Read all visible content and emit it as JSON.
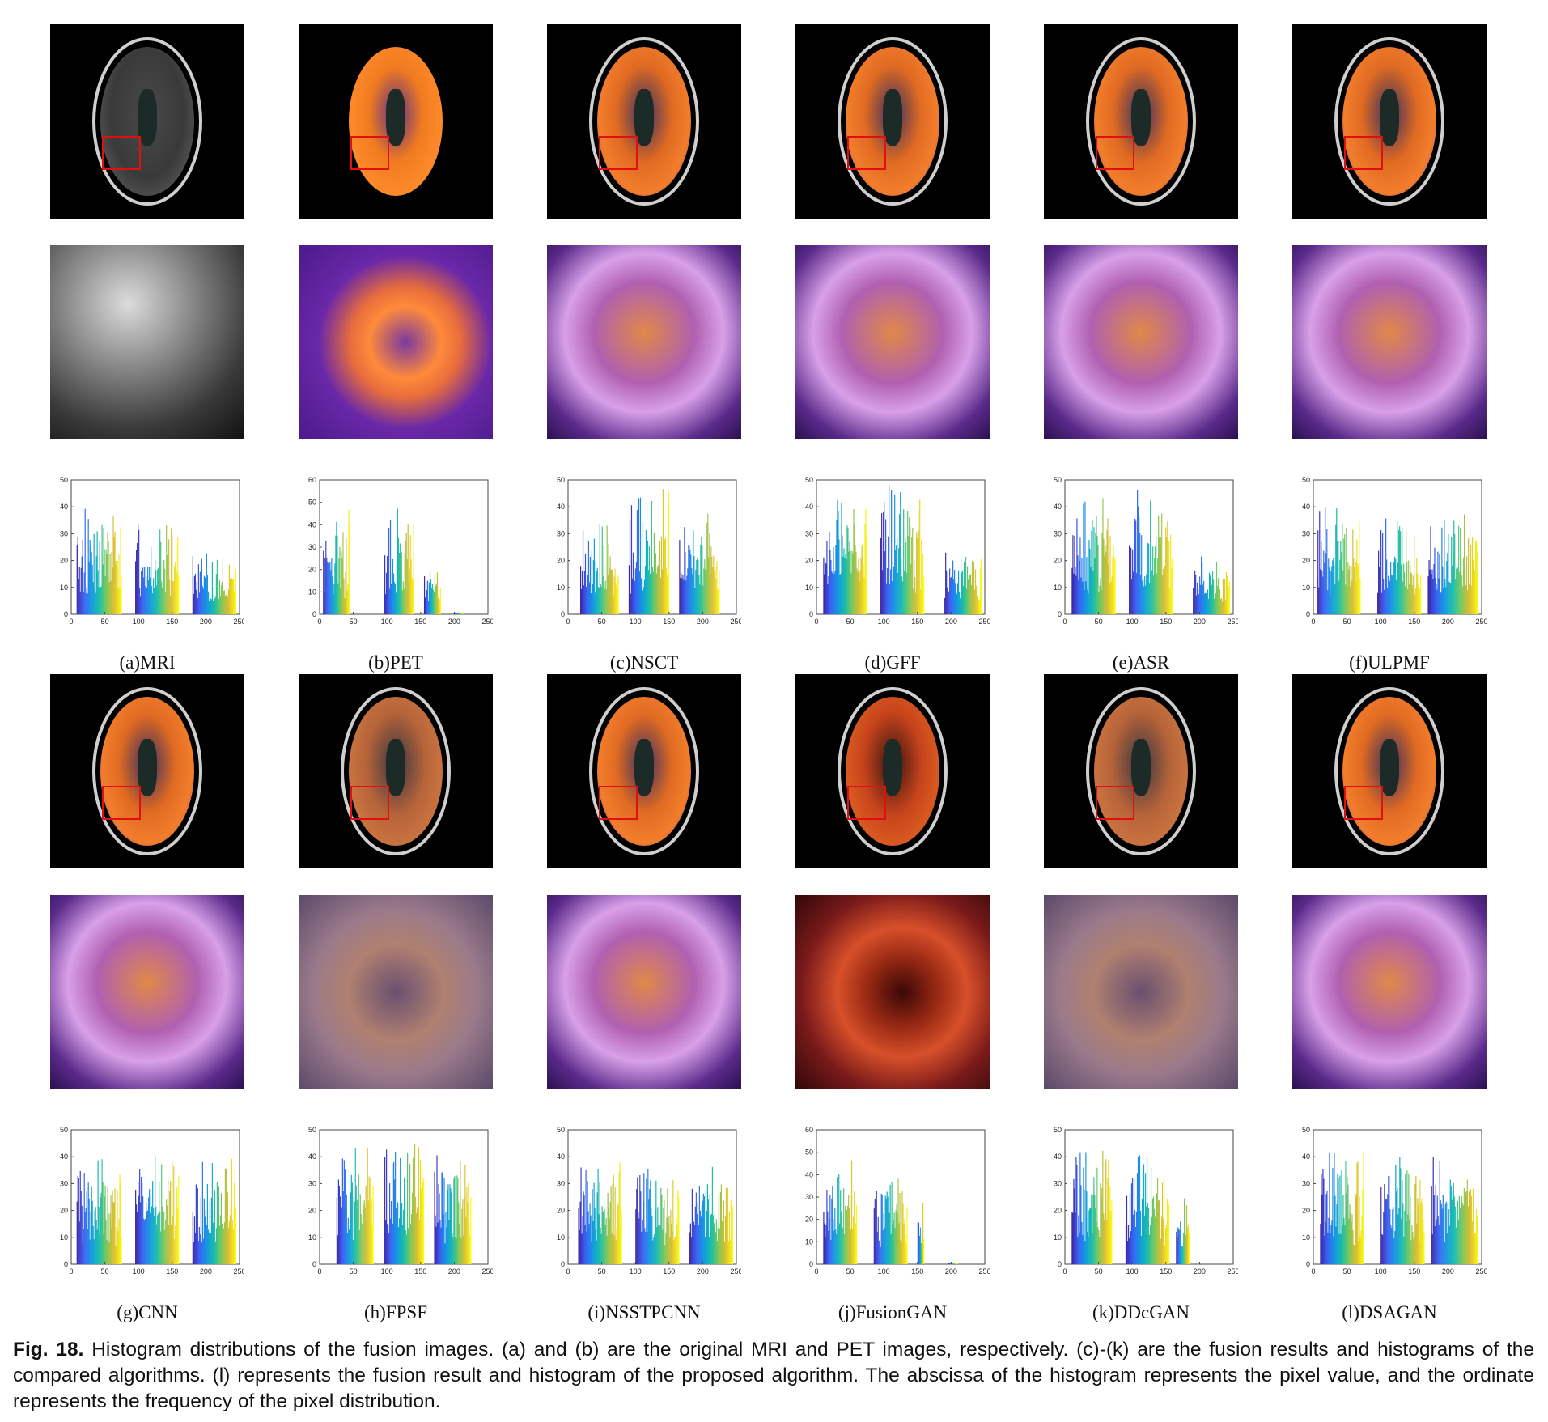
{
  "figure": {
    "caption_label": "Fig. 18.",
    "caption_text": "Histogram distributions of the fusion images. (a) and (b) are the original MRI and PET images, respectively. (c)-(k) are the fusion results and histograms of the compared algorithms. (l) represents the fusion result and histogram of the proposed algorithm. The abscissa of the histogram represents the pixel value, and the ordinate represents the frequency of the pixel distribution."
  },
  "panels": [
    {
      "label": "(a)MRI",
      "style": "mri"
    },
    {
      "label": "(b)PET",
      "style": "pet"
    },
    {
      "label": "(c)NSCT",
      "style": "fused"
    },
    {
      "label": "(d)GFF",
      "style": "fused"
    },
    {
      "label": "(e)ASR",
      "style": "fused"
    },
    {
      "label": "(f)ULPMF",
      "style": "fused"
    },
    {
      "label": "(g)CNN",
      "style": "fused"
    },
    {
      "label": "(h)FPSF",
      "style": "faded"
    },
    {
      "label": "(i)NSSTPCNN",
      "style": "fused"
    },
    {
      "label": "(j)FusionGAN",
      "style": "red"
    },
    {
      "label": "(k)DDcGAN",
      "style": "faded"
    },
    {
      "label": "(l)DSAGAN",
      "style": "fused"
    }
  ],
  "chart_data": [
    {
      "type": "bar",
      "panel": "(a)MRI",
      "xlim": [
        0,
        250
      ],
      "ylim": [
        0,
        50
      ],
      "xticks": [
        "0",
        "50",
        "100",
        "150",
        "200",
        "250"
      ],
      "yticks": [
        "0",
        "10",
        "20",
        "30",
        "40",
        "50"
      ],
      "groups": [
        {
          "x0": 8,
          "x1": 75,
          "peak": 40
        },
        {
          "x0": 95,
          "x1": 160,
          "peak": 38
        },
        {
          "x0": 180,
          "x1": 245,
          "peak": 23
        }
      ]
    },
    {
      "type": "bar",
      "panel": "(b)PET",
      "xlim": [
        0,
        250
      ],
      "ylim": [
        0,
        60
      ],
      "xticks": [
        "0",
        "50",
        "100",
        "150",
        "200",
        "250"
      ],
      "yticks": [
        "0",
        "10",
        "20",
        "30",
        "40",
        "50",
        "60"
      ],
      "groups": [
        {
          "x0": 5,
          "x1": 45,
          "peak": 48
        },
        {
          "x0": 95,
          "x1": 140,
          "peak": 51
        },
        {
          "x0": 155,
          "x1": 180,
          "peak": 25
        },
        {
          "x0": 200,
          "x1": 215,
          "peak": 1
        }
      ]
    },
    {
      "type": "bar",
      "panel": "(c)NSCT",
      "xlim": [
        0,
        250
      ],
      "ylim": [
        0,
        50
      ],
      "xticks": [
        "0",
        "50",
        "100",
        "150",
        "200",
        "250"
      ],
      "yticks": [
        "0",
        "10",
        "20",
        "30",
        "40",
        "50"
      ],
      "groups": [
        {
          "x0": 18,
          "x1": 75,
          "peak": 34
        },
        {
          "x0": 90,
          "x1": 150,
          "peak": 48
        },
        {
          "x0": 165,
          "x1": 225,
          "peak": 40
        }
      ]
    },
    {
      "type": "bar",
      "panel": "(d)GFF",
      "xlim": [
        0,
        250
      ],
      "ylim": [
        0,
        50
      ],
      "xticks": [
        "0",
        "50",
        "100",
        "150",
        "200",
        "250"
      ],
      "yticks": [
        "0",
        "10",
        "20",
        "30",
        "40",
        "50"
      ],
      "groups": [
        {
          "x0": 10,
          "x1": 75,
          "peak": 46
        },
        {
          "x0": 95,
          "x1": 160,
          "peak": 49
        },
        {
          "x0": 190,
          "x1": 245,
          "peak": 24
        }
      ]
    },
    {
      "type": "bar",
      "panel": "(e)ASR",
      "xlim": [
        0,
        250
      ],
      "ylim": [
        0,
        50
      ],
      "xticks": [
        "0",
        "50",
        "100",
        "150",
        "200",
        "250"
      ],
      "yticks": [
        "0",
        "10",
        "20",
        "30",
        "40",
        "50"
      ],
      "groups": [
        {
          "x0": 10,
          "x1": 75,
          "peak": 45
        },
        {
          "x0": 95,
          "x1": 160,
          "peak": 48
        },
        {
          "x0": 190,
          "x1": 245,
          "peak": 23
        }
      ]
    },
    {
      "type": "bar",
      "panel": "(f)ULPMF",
      "xlim": [
        0,
        250
      ],
      "ylim": [
        0,
        50
      ],
      "xticks": [
        "0",
        "50",
        "100",
        "150",
        "200",
        "250"
      ],
      "yticks": [
        "0",
        "10",
        "20",
        "30",
        "40",
        "50"
      ],
      "groups": [
        {
          "x0": 5,
          "x1": 70,
          "peak": 43
        },
        {
          "x0": 95,
          "x1": 160,
          "peak": 38
        },
        {
          "x0": 170,
          "x1": 245,
          "peak": 39
        }
      ]
    },
    {
      "type": "bar",
      "panel": "(g)CNN",
      "xlim": [
        0,
        250
      ],
      "ylim": [
        0,
        50
      ],
      "xticks": [
        "0",
        "50",
        "100",
        "150",
        "200",
        "250"
      ],
      "yticks": [
        "0",
        "10",
        "20",
        "30",
        "40",
        "50"
      ],
      "groups": [
        {
          "x0": 8,
          "x1": 75,
          "peak": 42
        },
        {
          "x0": 95,
          "x1": 160,
          "peak": 41
        },
        {
          "x0": 180,
          "x1": 245,
          "peak": 43
        }
      ]
    },
    {
      "type": "bar",
      "panel": "(h)FPSF",
      "xlim": [
        0,
        250
      ],
      "ylim": [
        0,
        50
      ],
      "xticks": [
        "0",
        "50",
        "100",
        "150",
        "200",
        "250"
      ],
      "yticks": [
        "0",
        "10",
        "20",
        "30",
        "40",
        "50"
      ],
      "groups": [
        {
          "x0": 25,
          "x1": 80,
          "peak": 47
        },
        {
          "x0": 95,
          "x1": 155,
          "peak": 48
        },
        {
          "x0": 170,
          "x1": 225,
          "peak": 42
        }
      ]
    },
    {
      "type": "bar",
      "panel": "(i)NSSTPCNN",
      "xlim": [
        0,
        250
      ],
      "ylim": [
        0,
        50
      ],
      "xticks": [
        "0",
        "50",
        "100",
        "150",
        "200",
        "250"
      ],
      "yticks": [
        "0",
        "10",
        "20",
        "30",
        "40",
        "50"
      ],
      "groups": [
        {
          "x0": 15,
          "x1": 80,
          "peak": 42
        },
        {
          "x0": 100,
          "x1": 165,
          "peak": 39
        },
        {
          "x0": 180,
          "x1": 245,
          "peak": 39
        }
      ]
    },
    {
      "type": "bar",
      "panel": "(j)FusionGAN",
      "xlim": [
        0,
        250
      ],
      "ylim": [
        0,
        60
      ],
      "xticks": [
        "0",
        "50",
        "100",
        "150",
        "200",
        "250"
      ],
      "yticks": [
        "0",
        "10",
        "20",
        "30",
        "40",
        "50",
        "60"
      ],
      "groups": [
        {
          "x0": 10,
          "x1": 60,
          "peak": 51
        },
        {
          "x0": 85,
          "x1": 135,
          "peak": 44
        },
        {
          "x0": 150,
          "x1": 160,
          "peak": 35
        },
        {
          "x0": 195,
          "x1": 210,
          "peak": 1
        }
      ]
    },
    {
      "type": "bar",
      "panel": "(k)DDcGAN",
      "xlim": [
        0,
        250
      ],
      "ylim": [
        0,
        50
      ],
      "xticks": [
        "0",
        "50",
        "100",
        "150",
        "200",
        "250"
      ],
      "yticks": [
        "0",
        "10",
        "20",
        "30",
        "40",
        "50"
      ],
      "groups": [
        {
          "x0": 10,
          "x1": 70,
          "peak": 48
        },
        {
          "x0": 90,
          "x1": 155,
          "peak": 46
        },
        {
          "x0": 165,
          "x1": 185,
          "peak": 27
        }
      ]
    },
    {
      "type": "bar",
      "panel": "(l)DSAGAN",
      "xlim": [
        0,
        250
      ],
      "ylim": [
        0,
        50
      ],
      "xticks": [
        "0",
        "50",
        "100",
        "150",
        "200",
        "250"
      ],
      "yticks": [
        "0",
        "10",
        "20",
        "30",
        "40",
        "50"
      ],
      "groups": [
        {
          "x0": 10,
          "x1": 75,
          "peak": 43
        },
        {
          "x0": 100,
          "x1": 165,
          "peak": 41
        },
        {
          "x0": 175,
          "x1": 245,
          "peak": 43
        }
      ]
    }
  ]
}
